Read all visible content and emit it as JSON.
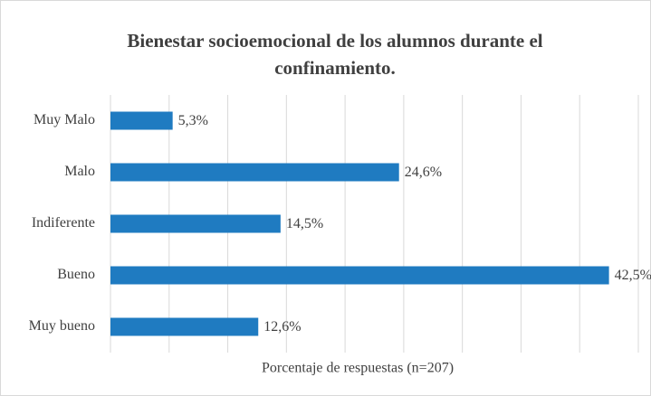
{
  "chart_data": {
    "type": "bar",
    "orientation": "horizontal",
    "title": "Bienestar socioemocional de los alumnos durante el confinamiento.",
    "x_label": "Porcentaje de respuestas (n=207)",
    "categories": [
      "Muy Malo",
      "Malo",
      "Indiferente",
      "Bueno",
      "Muy bueno"
    ],
    "values": [
      5.3,
      24.6,
      14.5,
      42.5,
      12.6
    ],
    "value_labels": [
      "5,3%",
      "24,6%",
      "14,5%",
      "42,5%",
      "12,6%"
    ],
    "color": "#1f7bc1",
    "xlim": [
      0,
      45
    ],
    "xticks": [
      0,
      5,
      10,
      15,
      20,
      25,
      30,
      35,
      40,
      45
    ],
    "grid": true
  }
}
